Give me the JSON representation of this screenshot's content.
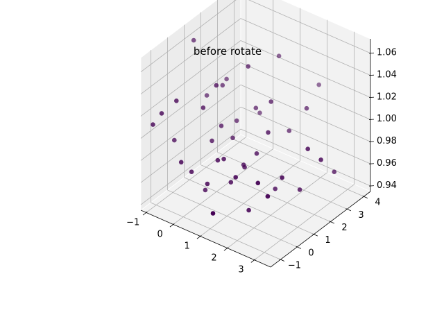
{
  "chart_data": {
    "type": "scatter",
    "projection": "3d",
    "title": "before rotate",
    "xlabel": "",
    "ylabel": "",
    "zlabel": "",
    "grid": true,
    "legend": false,
    "marker_color": "#440154",
    "xlim": [
      -1.2,
      3.6
    ],
    "ylim": [
      -1.6,
      4.4
    ],
    "zlim": [
      0.935,
      1.073
    ],
    "x_ticks": [
      -1,
      0,
      1,
      2,
      3
    ],
    "x_tick_labels": [
      "−1",
      "0",
      "1",
      "2",
      "3"
    ],
    "y_ticks": [
      -1,
      0,
      1,
      2,
      3,
      4
    ],
    "y_tick_labels": [
      "−1",
      "0",
      "1",
      "2",
      "3",
      "4"
    ],
    "z_ticks": [
      0.94,
      0.96,
      0.98,
      1.0,
      1.02,
      1.04,
      1.06
    ],
    "z_tick_labels": [
      "0.94",
      "0.96",
      "0.98",
      "1.00",
      "1.02",
      "1.04",
      "1.06"
    ],
    "points": [
      {
        "x": -0.6,
        "y": 0.6,
        "z": 1.07
      },
      {
        "x": -0.3,
        "y": 0.9,
        "z": 1.02
      },
      {
        "x": 0.0,
        "y": 1.6,
        "z": 1.03
      },
      {
        "x": 0.5,
        "y": 1.4,
        "z": 1.0
      },
      {
        "x": 0.8,
        "y": 2.3,
        "z": 1.0
      },
      {
        "x": 1.1,
        "y": 0.9,
        "z": 0.97
      },
      {
        "x": 1.8,
        "y": 1.6,
        "z": 0.95
      },
      {
        "x": 2.1,
        "y": 3.0,
        "z": 1.01
      },
      {
        "x": 2.0,
        "y": 3.9,
        "z": 1.02
      },
      {
        "x": 2.7,
        "y": 2.1,
        "z": 0.99
      },
      {
        "x": 3.0,
        "y": 2.4,
        "z": 0.98
      },
      {
        "x": 3.0,
        "y": 3.2,
        "z": 0.96
      },
      {
        "x": 2.3,
        "y": 1.2,
        "z": 0.97
      },
      {
        "x": 2.4,
        "y": 2.1,
        "z": 0.95
      },
      {
        "x": 1.5,
        "y": 0.5,
        "z": 0.94
      },
      {
        "x": 1.1,
        "y": -1.0,
        "z": 0.95
      },
      {
        "x": 0.2,
        "y": 0.0,
        "z": 0.95
      },
      {
        "x": 0.0,
        "y": -0.5,
        "z": 0.97
      },
      {
        "x": -0.8,
        "y": -1.0,
        "z": 1.02
      },
      {
        "x": -1.0,
        "y": -1.2,
        "z": 1.01
      },
      {
        "x": -0.5,
        "y": -0.6,
        "z": 1.03
      },
      {
        "x": -0.7,
        "y": -0.4,
        "z": 0.99
      },
      {
        "x": 0.3,
        "y": 0.8,
        "z": 1.0
      },
      {
        "x": 0.6,
        "y": 1.0,
        "z": 0.99
      },
      {
        "x": 1.3,
        "y": 1.3,
        "z": 0.98
      },
      {
        "x": 1.0,
        "y": 1.0,
        "z": 0.97
      },
      {
        "x": 0.7,
        "y": 0.3,
        "z": 0.98
      },
      {
        "x": 0.0,
        "y": 0.2,
        "z": 1.02
      },
      {
        "x": 0.3,
        "y": 0.5,
        "z": 1.04
      },
      {
        "x": 0.8,
        "y": 1.6,
        "z": 1.05
      },
      {
        "x": 1.4,
        "y": 2.0,
        "z": 1.02
      },
      {
        "x": 1.6,
        "y": 1.5,
        "z": 1.0
      },
      {
        "x": 0.9,
        "y": 0.4,
        "z": 0.96
      },
      {
        "x": 0.4,
        "y": -0.2,
        "z": 0.96
      },
      {
        "x": -0.2,
        "y": -0.8,
        "z": 0.98
      },
      {
        "x": 1.9,
        "y": 0.4,
        "z": 0.97
      },
      {
        "x": 2.2,
        "y": 0.5,
        "z": 0.96
      },
      {
        "x": 1.2,
        "y": 0.2,
        "z": 0.97
      },
      {
        "x": 0.1,
        "y": 1.2,
        "z": 1.03
      },
      {
        "x": 1.2,
        "y": 2.8,
        "z": 1.05
      },
      {
        "x": 0.6,
        "y": 0.1,
        "z": 0.98
      },
      {
        "x": 0.9,
        "y": 1.9,
        "z": 1.01
      },
      {
        "x": 1.7,
        "y": 2.6,
        "z": 0.99
      },
      {
        "x": 0.2,
        "y": 0.4,
        "z": 0.99
      }
    ]
  }
}
